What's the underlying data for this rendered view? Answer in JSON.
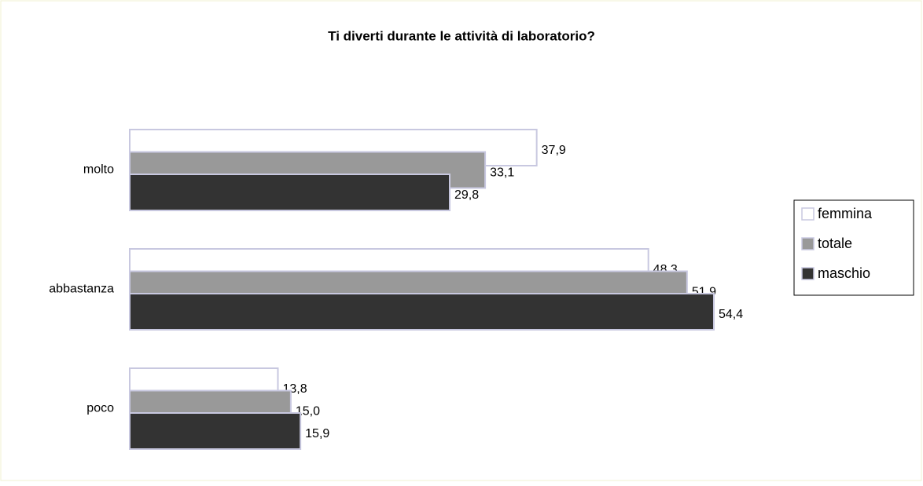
{
  "chart_data": {
    "type": "hbar",
    "title": "Ti diverti durante le attività di laboratorio?",
    "categories": [
      "molto",
      "abbastanza",
      "poco"
    ],
    "series": [
      {
        "name": "femmina",
        "color": "#ffffff",
        "values": [
          37.9,
          48.3,
          13.8
        ],
        "value_labels": [
          "37,9",
          "48,3",
          "13,8"
        ]
      },
      {
        "name": "totale",
        "color": "#999999",
        "values": [
          33.1,
          51.9,
          15.0
        ],
        "value_labels": [
          "33,1",
          "51,9",
          "15,0"
        ]
      },
      {
        "name": "maschio",
        "color": "#333333",
        "values": [
          29.8,
          54.4,
          15.9
        ],
        "value_labels": [
          "29,8",
          "54,4",
          "15,9"
        ]
      }
    ],
    "legend": "right"
  }
}
